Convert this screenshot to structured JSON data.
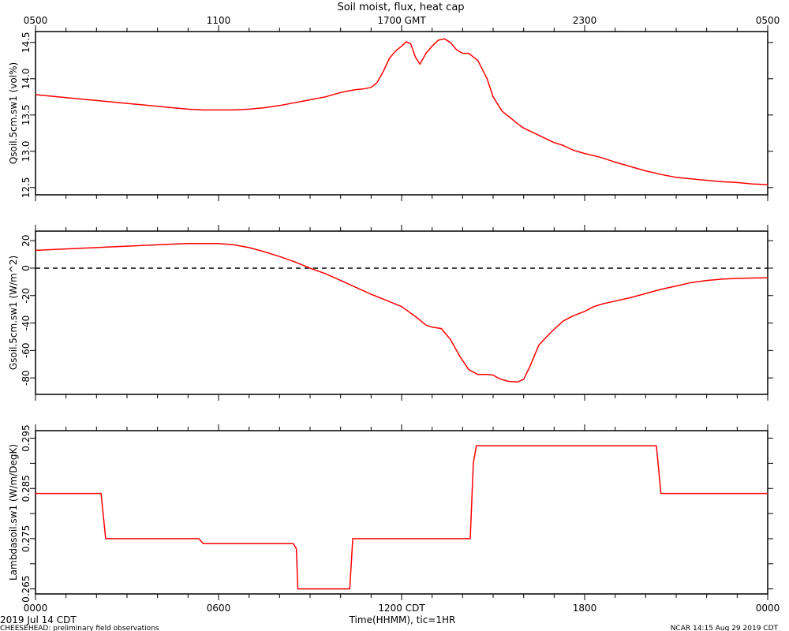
{
  "title": "Soil moist, flux, heat cap",
  "top_axis": {
    "ticks": [
      "0500",
      "1100",
      "1700 GMT",
      "2300",
      "0500"
    ]
  },
  "bottom_axis": {
    "ticks": [
      "0000",
      "0600",
      "1200 CDT",
      "1800",
      "0000"
    ],
    "label": "Time(HHMM), tic=1HR",
    "date_label": "2019 Jul 14 CDT"
  },
  "footer": {
    "left": "CHEESEHEAD: preliminary field observations",
    "right": "NCAR 14:15 Aug 29 2019 CDT"
  },
  "colors": {
    "series": "#ff0000",
    "axes": "#000000"
  },
  "chart_data": [
    {
      "type": "line",
      "ylabel": "Qsoil.5cm.sw1  (vol%)",
      "ylim": [
        12.4,
        14.65
      ],
      "yticks": [
        12.5,
        13.0,
        13.5,
        14.0,
        14.5
      ],
      "ytick_labels": [
        "12.5",
        "13.0",
        "13.5",
        "14.0",
        "14.5"
      ],
      "xlim": [
        0,
        24
      ],
      "x": [
        0,
        0.5,
        1,
        1.5,
        2,
        2.5,
        3,
        3.5,
        4,
        4.5,
        5,
        5.5,
        6,
        6.5,
        7,
        7.5,
        8,
        8.5,
        9,
        9.5,
        10,
        10.25,
        10.5,
        10.75,
        11,
        11.2,
        11.4,
        11.6,
        11.8,
        12,
        12.15,
        12.3,
        12.45,
        12.6,
        12.8,
        13,
        13.2,
        13.4,
        13.6,
        13.8,
        14,
        14.2,
        14.5,
        14.8,
        15,
        15.3,
        15.6,
        15.8,
        16,
        16.5,
        17,
        17.3,
        17.6,
        18,
        18.5,
        19,
        19.5,
        20,
        20.5,
        21,
        21.5,
        22,
        22.5,
        23,
        23.5,
        24
      ],
      "y": [
        13.78,
        13.76,
        13.74,
        13.72,
        13.7,
        13.68,
        13.66,
        13.64,
        13.62,
        13.6,
        13.58,
        13.57,
        13.57,
        13.57,
        13.58,
        13.6,
        13.63,
        13.67,
        13.71,
        13.75,
        13.81,
        13.83,
        13.85,
        13.86,
        13.88,
        13.95,
        14.1,
        14.28,
        14.38,
        14.45,
        14.51,
        14.48,
        14.3,
        14.2,
        14.35,
        14.45,
        14.53,
        14.55,
        14.5,
        14.4,
        14.35,
        14.35,
        14.25,
        14.0,
        13.75,
        13.55,
        13.45,
        13.38,
        13.32,
        13.22,
        13.12,
        13.08,
        13.02,
        12.97,
        12.92,
        12.85,
        12.79,
        12.73,
        12.68,
        12.64,
        12.62,
        12.6,
        12.58,
        12.57,
        12.55,
        12.54
      ],
      "reference_line": null
    },
    {
      "type": "line",
      "ylabel": "Gsoil.5cm.sw1  (W/m^2)",
      "ylim": [
        -92,
        27
      ],
      "yticks": [
        -80,
        -60,
        -40,
        -20,
        0,
        20
      ],
      "ytick_labels": [
        "-80",
        "-60",
        "-40",
        "-20",
        "0",
        "20"
      ],
      "xlim": [
        0,
        24
      ],
      "x": [
        0,
        0.5,
        1,
        1.5,
        2,
        2.5,
        3,
        3.5,
        4,
        4.5,
        5,
        5.5,
        6,
        6.5,
        7,
        7.5,
        8,
        8.5,
        9,
        9.5,
        10,
        10.5,
        11,
        11.5,
        12,
        12.5,
        12.8,
        13,
        13.3,
        13.6,
        13.9,
        14.2,
        14.5,
        14.8,
        15,
        15.2,
        15.5,
        15.8,
        16,
        16.2,
        16.5,
        16.8,
        17,
        17.3,
        17.6,
        18,
        18.3,
        18.6,
        19,
        19.5,
        20,
        20.5,
        21,
        21.5,
        22,
        22.5,
        23,
        23.5,
        24
      ],
      "y": [
        13,
        13.5,
        14,
        14.5,
        15,
        15.5,
        16,
        16.5,
        17,
        17.5,
        18,
        18,
        18,
        17,
        15,
        12,
        8.5,
        4.5,
        0,
        -4,
        -9,
        -14,
        -19,
        -23.5,
        -28,
        -36,
        -41.5,
        -43,
        -44,
        -52,
        -64,
        -74,
        -77.5,
        -77.5,
        -78,
        -80.5,
        -82.5,
        -83,
        -81,
        -72,
        -56,
        -49,
        -44.5,
        -38.5,
        -35,
        -31.5,
        -28,
        -26,
        -24,
        -21.5,
        -18.5,
        -15.5,
        -13,
        -10.5,
        -9,
        -8,
        -7.5,
        -7.2,
        -7
      ],
      "reference_line": 0
    },
    {
      "type": "line",
      "ylabel": "Lambdasoil.sw1  (W/m/DegK)",
      "ylim": [
        0.264,
        0.2965
      ],
      "yticks": [
        0.265,
        0.27,
        0.275,
        0.28,
        0.285,
        0.29,
        0.295
      ],
      "ytick_labels": [
        "0.265",
        "",
        "0.275",
        "",
        "0.285",
        "",
        "0.295"
      ],
      "xlim": [
        0,
        24
      ],
      "x": [
        0,
        2.15,
        2.3,
        5.35,
        5.5,
        8.45,
        8.55,
        8.6,
        10.3,
        10.4,
        14.25,
        14.35,
        14.45,
        20.35,
        20.5,
        24
      ],
      "y": [
        0.284,
        0.284,
        0.275,
        0.275,
        0.274,
        0.274,
        0.273,
        0.265,
        0.265,
        0.275,
        0.275,
        0.29,
        0.2935,
        0.2935,
        0.284,
        0.284
      ],
      "reference_line": null
    }
  ]
}
